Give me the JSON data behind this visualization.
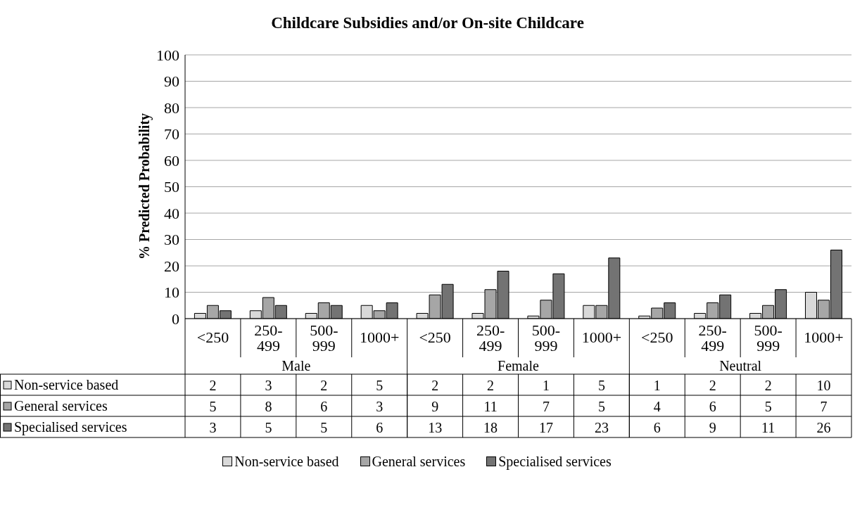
{
  "chart_data": {
    "type": "bar",
    "title": "Childcare Subsidies and/or On-site Childcare",
    "ylabel": "% Predicted Probability",
    "categories": [
      "<250",
      "250-499",
      "500-999",
      "1000+",
      "<250",
      "250-499",
      "500-999",
      "1000+",
      "<250",
      "250-499",
      "500-999",
      "1000+"
    ],
    "annotations": [
      "Male",
      "Female",
      "Neutral"
    ],
    "series": [
      {
        "name": "Non-service based",
        "color": "#d9d9d9",
        "values": [
          2,
          3,
          2,
          5,
          2,
          2,
          1,
          5,
          1,
          2,
          2,
          10
        ]
      },
      {
        "name": "General services",
        "color": "#a6a6a6",
        "values": [
          5,
          8,
          6,
          3,
          9,
          11,
          7,
          5,
          4,
          6,
          5,
          7
        ]
      },
      {
        "name": "Specialised services",
        "color": "#737373",
        "values": [
          3,
          5,
          5,
          6,
          13,
          18,
          17,
          23,
          6,
          9,
          11,
          26
        ]
      }
    ],
    "ylim": [
      0,
      100
    ],
    "yticks": [
      0,
      10,
      20,
      30,
      40,
      50,
      60,
      70,
      80,
      90,
      100
    ],
    "grid": "y",
    "legend": "bottom",
    "data_labels": true
  }
}
